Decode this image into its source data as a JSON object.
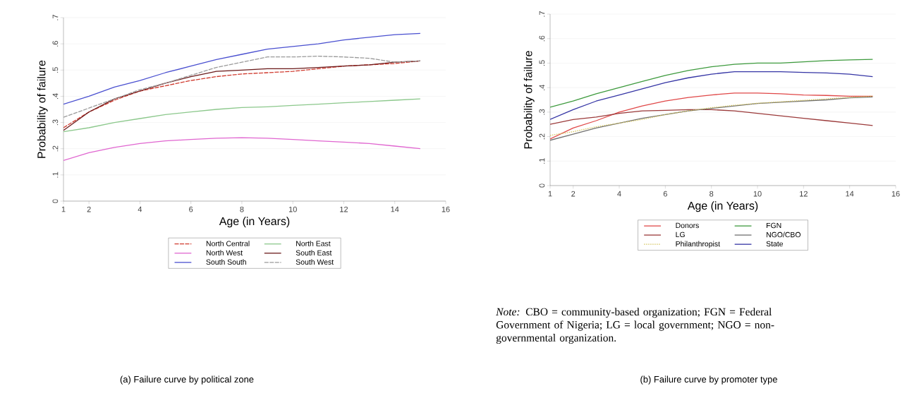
{
  "chart_data": [
    {
      "type": "line",
      "xlabel": "Age (in Years)",
      "ylabel": "Probability of failure",
      "x": [
        1,
        2,
        3,
        4,
        5,
        6,
        7,
        8,
        9,
        10,
        11,
        12,
        13,
        14,
        15
      ],
      "series": [
        {
          "name": "North Central",
          "color": "#d03a2e",
          "line_style": "dashed",
          "values": [
            0.28,
            0.34,
            0.385,
            0.42,
            0.44,
            0.46,
            0.475,
            0.485,
            0.49,
            0.495,
            0.505,
            0.515,
            0.52,
            0.525,
            0.535
          ]
        },
        {
          "name": "North East",
          "color": "#8cc88c",
          "values": [
            0.265,
            0.28,
            0.3,
            0.315,
            0.33,
            0.34,
            0.35,
            0.357,
            0.36,
            0.365,
            0.37,
            0.375,
            0.38,
            0.385,
            0.39
          ]
        },
        {
          "name": "North West",
          "color": "#e066d0",
          "values": [
            0.155,
            0.185,
            0.205,
            0.22,
            0.23,
            0.235,
            0.24,
            0.242,
            0.24,
            0.235,
            0.23,
            0.225,
            0.22,
            0.21,
            0.2
          ]
        },
        {
          "name": "South East",
          "color": "#6b1a1a",
          "values": [
            0.27,
            0.34,
            0.39,
            0.42,
            0.45,
            0.475,
            0.495,
            0.5,
            0.505,
            0.505,
            0.51,
            0.515,
            0.52,
            0.53,
            0.535
          ]
        },
        {
          "name": "South South",
          "color": "#4a50d0",
          "values": [
            0.37,
            0.4,
            0.435,
            0.46,
            0.49,
            0.515,
            0.54,
            0.56,
            0.58,
            0.59,
            0.6,
            0.615,
            0.625,
            0.635,
            0.64
          ]
        },
        {
          "name": "South West",
          "color": "#9a9a9a",
          "line_style": "dashed",
          "values": [
            0.32,
            0.355,
            0.39,
            0.425,
            0.45,
            0.48,
            0.51,
            0.53,
            0.55,
            0.55,
            0.553,
            0.55,
            0.545,
            0.53,
            0.535
          ]
        }
      ],
      "xlim": [
        1,
        16
      ],
      "xticks": [
        1,
        2,
        4,
        6,
        8,
        10,
        12,
        14,
        16
      ],
      "ylim": [
        0,
        0.7
      ],
      "yticks": [
        {
          "value": 0,
          "label": "0"
        },
        {
          "value": 0.1,
          "label": ".1"
        },
        {
          "value": 0.2,
          "label": ".2"
        },
        {
          "value": 0.3,
          "label": ".3"
        },
        {
          "value": 0.4,
          "label": ".4"
        },
        {
          "value": 0.5,
          "label": ".5"
        },
        {
          "value": 0.6,
          "label": ".6"
        },
        {
          "value": 0.7,
          "label": ".7"
        }
      ],
      "grid": "y",
      "legend": "bottom",
      "annotations": [
        "(a) Failure curve by political zone"
      ]
    },
    {
      "type": "line",
      "xlabel": "Age (in Years)",
      "ylabel": "Probability of failure",
      "x": [
        1,
        2,
        3,
        4,
        5,
        6,
        7,
        8,
        9,
        10,
        11,
        12,
        13,
        14,
        15
      ],
      "series": [
        {
          "name": "Donors",
          "color": "#e04848",
          "values": [
            0.19,
            0.235,
            0.265,
            0.3,
            0.325,
            0.345,
            0.36,
            0.37,
            0.378,
            0.378,
            0.375,
            0.37,
            0.368,
            0.365,
            0.365
          ]
        },
        {
          "name": "FGN",
          "color": "#3d9a3d",
          "values": [
            0.32,
            0.345,
            0.375,
            0.4,
            0.425,
            0.45,
            0.47,
            0.485,
            0.495,
            0.5,
            0.5,
            0.505,
            0.51,
            0.513,
            0.515
          ]
        },
        {
          "name": "LG",
          "color": "#9b3a3a",
          "values": [
            0.25,
            0.27,
            0.28,
            0.295,
            0.305,
            0.307,
            0.31,
            0.31,
            0.305,
            0.295,
            0.285,
            0.275,
            0.265,
            0.255,
            0.245
          ]
        },
        {
          "name": "NGO/CBO",
          "color": "#707070",
          "values": [
            0.185,
            0.21,
            0.235,
            0.255,
            0.275,
            0.29,
            0.305,
            0.315,
            0.325,
            0.335,
            0.34,
            0.345,
            0.35,
            0.358,
            0.362
          ]
        },
        {
          "name": "Philanthropist",
          "color": "#d4c45a",
          "line_style": "dotted",
          "values": [
            0.205,
            0.22,
            0.24,
            0.255,
            0.27,
            0.29,
            0.305,
            0.318,
            0.328,
            0.336,
            0.342,
            0.348,
            0.354,
            0.36,
            0.365
          ]
        },
        {
          "name": "State",
          "color": "#3535a5",
          "values": [
            0.27,
            0.31,
            0.345,
            0.37,
            0.395,
            0.42,
            0.44,
            0.455,
            0.465,
            0.465,
            0.465,
            0.462,
            0.46,
            0.455,
            0.445
          ]
        }
      ],
      "xlim": [
        1,
        16
      ],
      "xticks": [
        1,
        2,
        4,
        6,
        8,
        10,
        12,
        14,
        16
      ],
      "ylim": [
        0,
        0.7
      ],
      "yticks": [
        {
          "value": 0,
          "label": "0"
        },
        {
          "value": 0.1,
          "label": ".1"
        },
        {
          "value": 0.2,
          "label": ".2"
        },
        {
          "value": 0.3,
          "label": ".3"
        },
        {
          "value": 0.4,
          "label": ".4"
        },
        {
          "value": 0.5,
          "label": ".5"
        },
        {
          "value": 0.6,
          "label": ".6"
        },
        {
          "value": 0.7,
          "label": ".7"
        }
      ],
      "grid": "y",
      "legend": "bottom",
      "annotations": [
        "*Note:* CBO = community-based organization; FGN = Federal Government of Nigeria; LG = local government; NGO = non-governmental organization.",
        "(b) Failure curve by promoter type"
      ]
    }
  ]
}
